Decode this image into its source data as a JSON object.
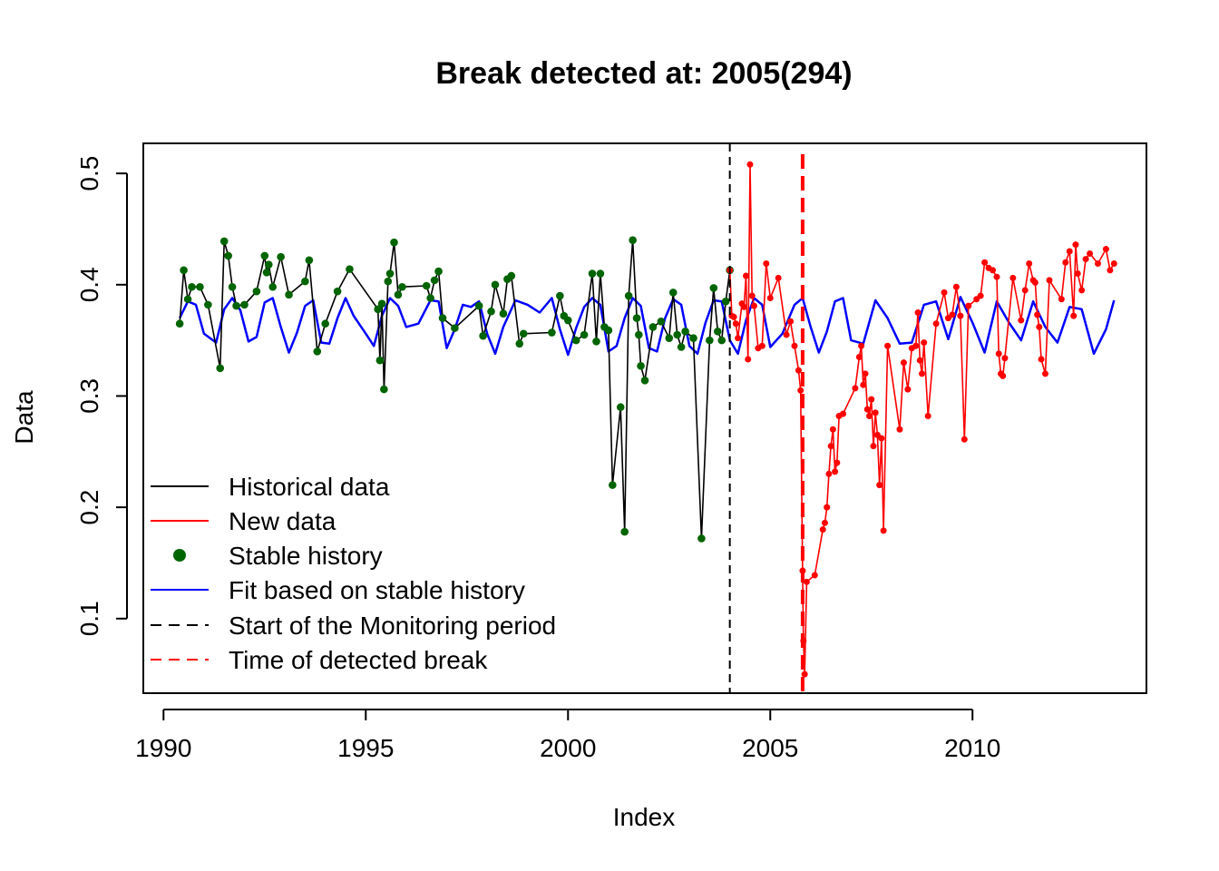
{
  "chart_data": {
    "type": "line",
    "title": "Break detected at: 2005(294)",
    "xlabel": "Index",
    "ylabel": "Data",
    "xlim": [
      1989.5,
      2014.3
    ],
    "ylim": [
      0.033,
      0.527
    ],
    "x_ticks": [
      1990,
      1995,
      2000,
      2005,
      2010
    ],
    "x_tick_labels": [
      "1990",
      "1995",
      "2000",
      "2005",
      "2010"
    ],
    "y_ticks": [
      0.1,
      0.2,
      0.3,
      0.4,
      0.5
    ],
    "y_tick_labels": [
      "0.1",
      "0.2",
      "0.3",
      "0.4",
      "0.5"
    ],
    "monitoring_start": 2004.0,
    "break_time": 2005.8,
    "colors": {
      "historical": "#000000",
      "new": "#ff0000",
      "stable": "#006400",
      "fit": "#0000ff",
      "monitoring": "#000000",
      "break": "#ff0000"
    },
    "legend": {
      "position": "bottom-left",
      "entries": [
        {
          "label": "Historical data",
          "style": "solid",
          "color": "#000000"
        },
        {
          "label": "New data",
          "style": "solid",
          "color": "#ff0000"
        },
        {
          "label": "Stable history",
          "style": "point",
          "color": "#006400"
        },
        {
          "label": "Fit based on stable history",
          "style": "solid",
          "color": "#0000ff"
        },
        {
          "label": "Start of the Monitoring period",
          "style": "dashed",
          "color": "#000000"
        },
        {
          "label": "Time of detected break",
          "style": "dashed",
          "color": "#ff0000"
        }
      ]
    },
    "series": [
      {
        "name": "Historical data",
        "x": [
          1990.4,
          1990.5,
          1990.6,
          1990.7,
          1990.9,
          1991.1,
          1991.4,
          1991.5,
          1991.6,
          1991.7,
          1991.8,
          1992.0,
          1992.3,
          1992.5,
          1992.55,
          1992.6,
          1992.7,
          1992.9,
          1993.1,
          1993.5,
          1993.6,
          1993.8,
          1994.0,
          1994.3,
          1994.6,
          1995.3,
          1995.35,
          1995.4,
          1995.45,
          1995.55,
          1995.6,
          1995.7,
          1995.8,
          1995.9,
          1996.5,
          1996.6,
          1996.7,
          1996.8,
          1996.9,
          1997.2,
          1997.8,
          1997.9,
          1998.1,
          1998.2,
          1998.4,
          1998.5,
          1998.6,
          1998.8,
          1998.9,
          1999.6,
          1999.8,
          1999.9,
          2000.0,
          2000.2,
          2000.4,
          2000.6,
          2000.7,
          2000.8,
          2000.9,
          2001.0,
          2001.1,
          2001.3,
          2001.4,
          2001.5,
          2001.6,
          2001.7,
          2001.75,
          2001.8,
          2001.9,
          2002.1,
          2002.3,
          2002.5,
          2002.6,
          2002.7,
          2002.8,
          2002.9,
          2003.1,
          2003.3,
          2003.5,
          2003.6,
          2003.7,
          2003.8,
          2003.9,
          2004.0
        ],
        "y": [
          0.365,
          0.413,
          0.387,
          0.398,
          0.398,
          0.382,
          0.325,
          0.439,
          0.426,
          0.398,
          0.381,
          0.382,
          0.394,
          0.426,
          0.411,
          0.418,
          0.398,
          0.425,
          0.391,
          0.403,
          0.422,
          0.34,
          0.365,
          0.394,
          0.414,
          0.378,
          0.332,
          0.383,
          0.306,
          0.403,
          0.41,
          0.438,
          0.391,
          0.398,
          0.399,
          0.388,
          0.404,
          0.412,
          0.37,
          0.361,
          0.381,
          0.354,
          0.376,
          0.4,
          0.374,
          0.405,
          0.408,
          0.347,
          0.356,
          0.357,
          0.39,
          0.372,
          0.368,
          0.35,
          0.355,
          0.41,
          0.349,
          0.41,
          0.362,
          0.359,
          0.22,
          0.29,
          0.178,
          0.39,
          0.44,
          0.37,
          0.355,
          0.327,
          0.314,
          0.362,
          0.367,
          0.352,
          0.393,
          0.355,
          0.344,
          0.358,
          0.352,
          0.172,
          0.35,
          0.397,
          0.358,
          0.35,
          0.385,
          0.413
        ]
      },
      {
        "name": "New data",
        "x": [
          2004.0,
          2004.05,
          2004.1,
          2004.15,
          2004.2,
          2004.3,
          2004.35,
          2004.4,
          2004.45,
          2004.5,
          2004.55,
          2004.6,
          2004.7,
          2004.8,
          2004.9,
          2005.0,
          2005.2,
          2005.4,
          2005.5,
          2005.6,
          2005.7,
          2005.75,
          2005.8,
          2005.82,
          2005.85,
          2005.9,
          2006.1,
          2006.3,
          2006.35,
          2006.4,
          2006.45,
          2006.5,
          2006.55,
          2006.6,
          2006.65,
          2006.7,
          2006.8,
          2007.1,
          2007.2,
          2007.25,
          2007.3,
          2007.35,
          2007.4,
          2007.45,
          2007.5,
          2007.55,
          2007.6,
          2007.65,
          2007.7,
          2007.75,
          2007.8,
          2007.9,
          2008.2,
          2008.3,
          2008.4,
          2008.5,
          2008.6,
          2008.65,
          2008.7,
          2008.75,
          2008.8,
          2008.9,
          2009.1,
          2009.3,
          2009.4,
          2009.5,
          2009.6,
          2009.7,
          2009.8,
          2009.9,
          2010.1,
          2010.2,
          2010.3,
          2010.4,
          2010.5,
          2010.6,
          2010.65,
          2010.7,
          2010.75,
          2010.8,
          2011.0,
          2011.2,
          2011.3,
          2011.4,
          2011.5,
          2011.55,
          2011.6,
          2011.65,
          2011.7,
          2011.8,
          2011.9,
          2012.2,
          2012.3,
          2012.4,
          2012.5,
          2012.55,
          2012.6,
          2012.7,
          2012.8,
          2012.9,
          2013.1,
          2013.3,
          2013.4,
          2013.5
        ],
        "y": [
          0.413,
          0.372,
          0.371,
          0.365,
          0.352,
          0.383,
          0.38,
          0.408,
          0.333,
          0.508,
          0.39,
          0.381,
          0.343,
          0.345,
          0.419,
          0.388,
          0.406,
          0.355,
          0.367,
          0.345,
          0.323,
          0.305,
          0.143,
          0.08,
          0.05,
          0.133,
          0.139,
          0.18,
          0.186,
          0.2,
          0.23,
          0.255,
          0.27,
          0.232,
          0.24,
          0.282,
          0.284,
          0.307,
          0.335,
          0.345,
          0.31,
          0.32,
          0.288,
          0.282,
          0.297,
          0.255,
          0.285,
          0.265,
          0.22,
          0.262,
          0.179,
          0.345,
          0.27,
          0.33,
          0.306,
          0.343,
          0.345,
          0.375,
          0.332,
          0.32,
          0.348,
          0.282,
          0.365,
          0.393,
          0.37,
          0.373,
          0.398,
          0.372,
          0.261,
          0.381,
          0.387,
          0.39,
          0.42,
          0.415,
          0.413,
          0.407,
          0.338,
          0.32,
          0.318,
          0.334,
          0.406,
          0.368,
          0.395,
          0.419,
          0.404,
          0.402,
          0.373,
          0.362,
          0.333,
          0.32,
          0.404,
          0.387,
          0.42,
          0.43,
          0.372,
          0.436,
          0.41,
          0.395,
          0.423,
          0.428,
          0.419,
          0.432,
          0.413,
          0.419
        ]
      },
      {
        "name": "Fit based on stable history",
        "x": [
          1990.4,
          1990.6,
          1990.8,
          1991.0,
          1991.3,
          1991.5,
          1991.7,
          1991.9,
          1992.1,
          1992.3,
          1992.5,
          1992.7,
          1992.9,
          1993.1,
          1993.3,
          1993.5,
          1993.7,
          1993.9,
          1994.1,
          1994.3,
          1994.5,
          1994.7,
          1995.0,
          1995.2,
          1995.4,
          1995.6,
          1995.8,
          1996.0,
          1996.3,
          1996.6,
          1996.8,
          1997.0,
          1997.2,
          1997.4,
          1997.6,
          1997.8,
          1998.0,
          1998.2,
          1998.4,
          1998.7,
          1999.0,
          1999.3,
          1999.6,
          1999.8,
          2000.0,
          2000.2,
          2000.4,
          2000.6,
          2000.8,
          2001.0,
          2001.2,
          2001.4,
          2001.6,
          2001.8,
          2002.0,
          2002.2,
          2002.4,
          2002.6,
          2002.8,
          2003.0,
          2003.2,
          2003.4,
          2003.6,
          2003.8,
          2004.0,
          2004.2,
          2004.4,
          2004.6,
          2004.8,
          2005.0,
          2005.3,
          2005.6,
          2005.8,
          2006.0,
          2006.2,
          2006.4,
          2006.6,
          2006.8,
          2007.0,
          2007.3,
          2007.6,
          2007.9,
          2008.2,
          2008.5,
          2008.8,
          2009.1,
          2009.4,
          2009.7,
          2010.0,
          2010.3,
          2010.6,
          2010.9,
          2011.2,
          2011.5,
          2011.8,
          2012.1,
          2012.4,
          2012.7,
          2013.0,
          2013.3,
          2013.5
        ],
        "y": [
          0.37,
          0.385,
          0.382,
          0.356,
          0.348,
          0.378,
          0.388,
          0.377,
          0.349,
          0.353,
          0.384,
          0.388,
          0.362,
          0.339,
          0.357,
          0.381,
          0.386,
          0.348,
          0.347,
          0.37,
          0.388,
          0.372,
          0.356,
          0.345,
          0.372,
          0.388,
          0.381,
          0.362,
          0.365,
          0.386,
          0.385,
          0.343,
          0.36,
          0.382,
          0.38,
          0.385,
          0.356,
          0.338,
          0.362,
          0.386,
          0.382,
          0.375,
          0.388,
          0.36,
          0.337,
          0.361,
          0.38,
          0.388,
          0.382,
          0.34,
          0.345,
          0.37,
          0.388,
          0.381,
          0.343,
          0.34,
          0.37,
          0.387,
          0.382,
          0.345,
          0.338,
          0.366,
          0.386,
          0.385,
          0.35,
          0.338,
          0.368,
          0.388,
          0.382,
          0.344,
          0.356,
          0.382,
          0.388,
          0.362,
          0.339,
          0.358,
          0.385,
          0.388,
          0.35,
          0.347,
          0.386,
          0.37,
          0.347,
          0.348,
          0.382,
          0.385,
          0.351,
          0.389,
          0.366,
          0.339,
          0.385,
          0.366,
          0.35,
          0.385,
          0.362,
          0.348,
          0.38,
          0.378,
          0.338,
          0.36,
          0.386
        ]
      }
    ]
  }
}
